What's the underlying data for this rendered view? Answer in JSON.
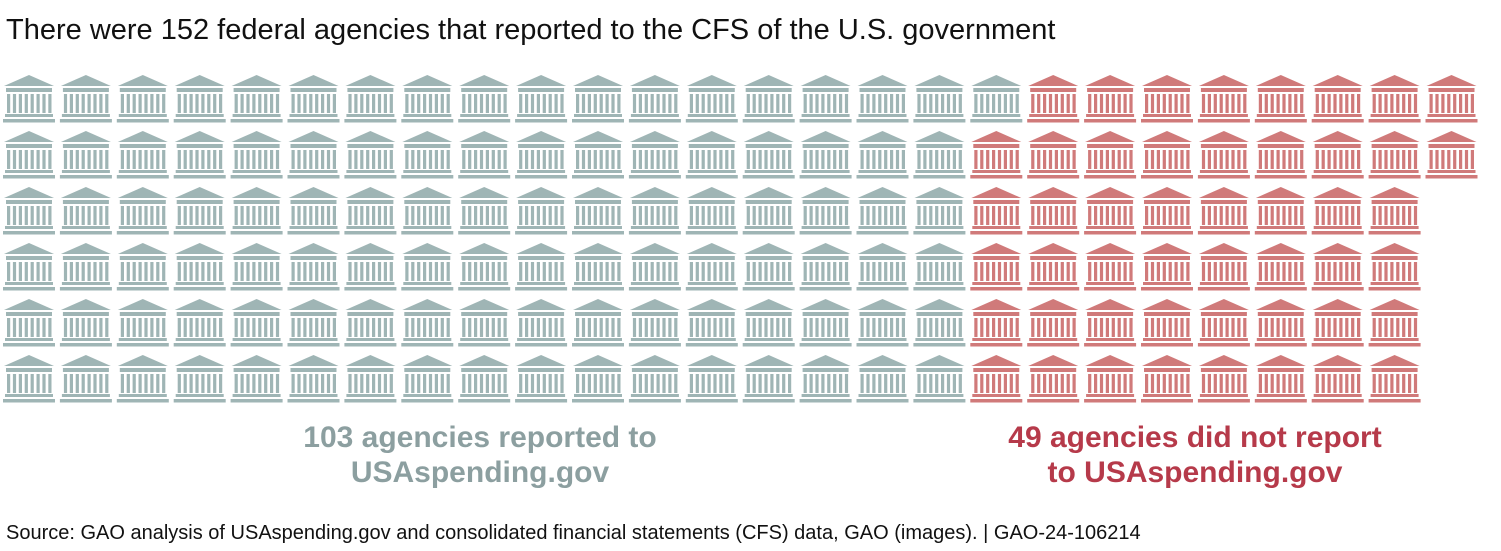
{
  "title": "There were 152 federal agencies that reported to the CFS of the U.S. government",
  "chart_data": {
    "type": "pictogram",
    "total": 152,
    "rows": 6,
    "icon": "government-building-icon",
    "rows_per_column": [
      6,
      6,
      6,
      6,
      6,
      6,
      6,
      6,
      6,
      6,
      6,
      6,
      6,
      6,
      6,
      6,
      6,
      6,
      6,
      6,
      6,
      6,
      6,
      6,
      6,
      2
    ],
    "series": [
      {
        "name": "reported",
        "count": 103,
        "color": "#9fb5b5",
        "label_color": "#8c9fa0",
        "label_lines": [
          "103 agencies reported to",
          "USAspending.gov"
        ]
      },
      {
        "name": "not_reported",
        "count": 49,
        "color": "#d07a7a",
        "label_color": "#b63a4a",
        "label_lines": [
          "49 agencies did not report",
          "to USAspending.gov"
        ]
      }
    ]
  },
  "source": "Source: GAO analysis of USAspending.gov and consolidated financial statements (CFS) data, GAO (images).  |  GAO-24-106214"
}
